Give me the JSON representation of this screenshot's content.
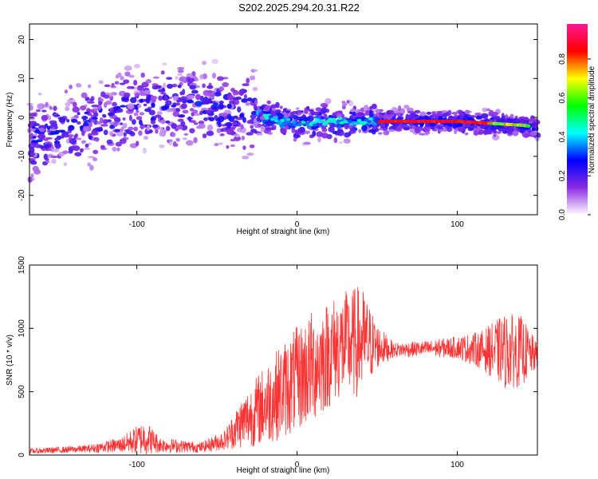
{
  "title": "S202.2025.294.20.31.R22",
  "chart_data": [
    {
      "type": "heatmap",
      "xlabel": "Height of straight line (km)",
      "ylabel": "Frequency (Hz)",
      "xlim": [
        -167,
        150
      ],
      "ylim": [
        -25,
        24
      ],
      "xticks": [
        -100,
        0,
        100
      ],
      "yticks": [
        -20,
        -10,
        0,
        10,
        20
      ],
      "colorbar": {
        "label": "Normalized spectral amplitude",
        "ticks": [
          "0.0",
          "0.2",
          "0.4",
          "0.6",
          "0.8"
        ],
        "range": [
          0,
          0.98
        ],
        "colors": [
          "#ffffff",
          "#8a2be2",
          "#0000ff",
          "#00ffff",
          "#00ff00",
          "#ffff00",
          "#ff0000",
          "#ff1493"
        ]
      },
      "ridge": [
        {
          "x": -167,
          "y": -6
        },
        {
          "x": -140,
          "y": -3
        },
        {
          "x": -120,
          "y": 0
        },
        {
          "x": -100,
          "y": 2
        },
        {
          "x": -80,
          "y": 3
        },
        {
          "x": -60,
          "y": 3
        },
        {
          "x": -40,
          "y": 2
        },
        {
          "x": -25,
          "y": 1
        },
        {
          "x": -10,
          "y": -1
        },
        {
          "x": 0,
          "y": -1.5
        },
        {
          "x": 20,
          "y": -1
        },
        {
          "x": 40,
          "y": -1
        },
        {
          "x": 60,
          "y": -1
        },
        {
          "x": 80,
          "y": -1
        },
        {
          "x": 100,
          "y": -1
        },
        {
          "x": 120,
          "y": -1.5
        },
        {
          "x": 140,
          "y": -2
        },
        {
          "x": 150,
          "y": -2.5
        }
      ]
    },
    {
      "type": "line",
      "xlabel": "Height of straight line (km)",
      "ylabel": "SNR (10 * v/v)",
      "xlim": [
        -167,
        150
      ],
      "ylim": [
        0,
        1500
      ],
      "xticks": [
        -100,
        0,
        100
      ],
      "yticks": [
        0,
        500,
        1000,
        1500
      ],
      "series": [
        {
          "color": "#ff3333",
          "envelope": [
            {
              "x": -167,
              "mid": 30,
              "amp": 20
            },
            {
              "x": -130,
              "mid": 50,
              "amp": 30
            },
            {
              "x": -110,
              "mid": 80,
              "amp": 60
            },
            {
              "x": -95,
              "mid": 140,
              "amp": 140
            },
            {
              "x": -85,
              "mid": 80,
              "amp": 60
            },
            {
              "x": -60,
              "mid": 60,
              "amp": 40
            },
            {
              "x": -45,
              "mid": 120,
              "amp": 80
            },
            {
              "x": -35,
              "mid": 250,
              "amp": 200
            },
            {
              "x": -20,
              "mid": 400,
              "amp": 320
            },
            {
              "x": -5,
              "mid": 550,
              "amp": 400
            },
            {
              "x": 10,
              "mid": 700,
              "amp": 450
            },
            {
              "x": 25,
              "mid": 850,
              "amp": 420
            },
            {
              "x": 40,
              "mid": 900,
              "amp": 450
            },
            {
              "x": 50,
              "mid": 860,
              "amp": 180
            },
            {
              "x": 60,
              "mid": 830,
              "amp": 60
            },
            {
              "x": 80,
              "mid": 840,
              "amp": 60
            },
            {
              "x": 100,
              "mid": 850,
              "amp": 90
            },
            {
              "x": 115,
              "mid": 830,
              "amp": 150
            },
            {
              "x": 130,
              "mid": 820,
              "amp": 300
            },
            {
              "x": 140,
              "mid": 820,
              "amp": 280
            },
            {
              "x": 150,
              "mid": 780,
              "amp": 100
            }
          ]
        }
      ]
    }
  ]
}
